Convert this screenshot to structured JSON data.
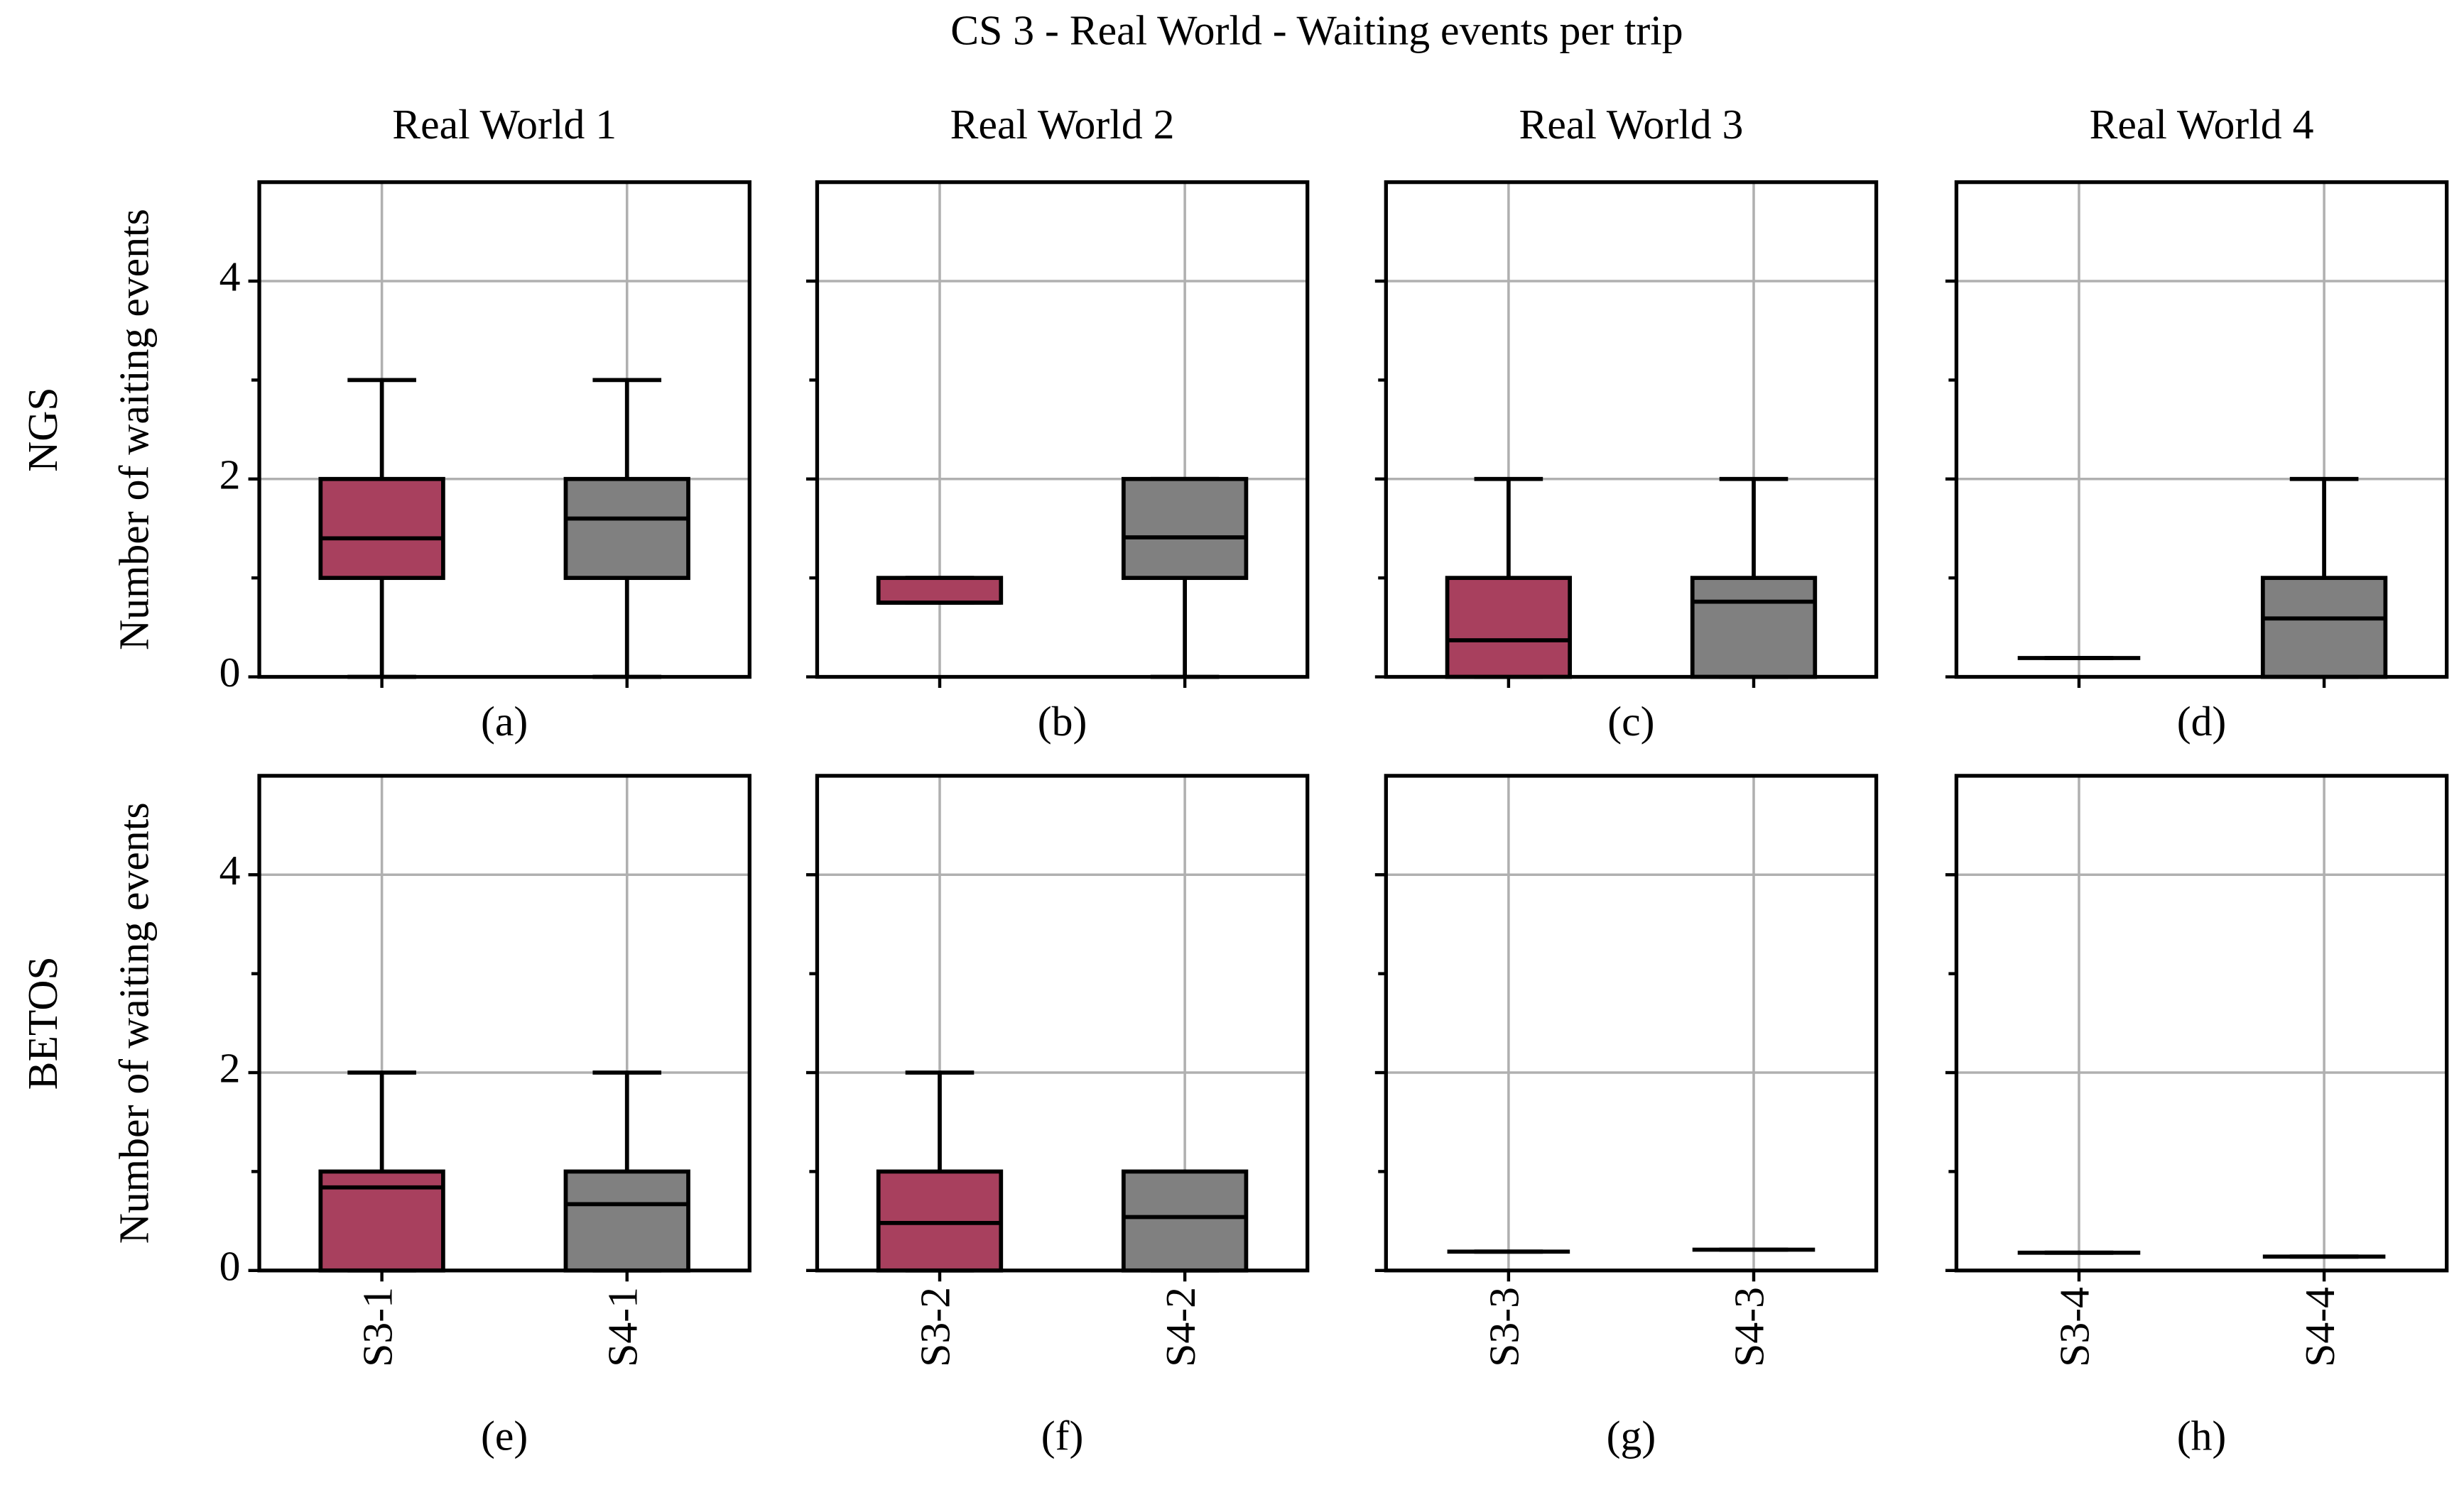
{
  "title": "CS 3 - Real World - Waiting events per trip",
  "chart_data": [
    {
      "type": "box",
      "title": "Real World 1",
      "row_label": "NGS",
      "ylabel": "Number of waiting events",
      "panel_label": "(a)",
      "categories": [
        null,
        null
      ],
      "ylim": [
        0,
        5
      ],
      "yticks": [
        0,
        2,
        4
      ],
      "yminorticks": [
        1,
        3
      ],
      "show_yticklabels": true,
      "grid": true,
      "boxes": [
        {
          "min": 0,
          "q1": 1,
          "median": 1.4,
          "q3": 2,
          "max": 3,
          "color": "#a8405e"
        },
        {
          "min": 0,
          "q1": 1,
          "median": 1.6,
          "q3": 2,
          "max": 3,
          "color": "#808080"
        }
      ]
    },
    {
      "type": "box",
      "title": "Real World 2",
      "panel_label": "(b)",
      "categories": [
        null,
        null
      ],
      "ylim": [
        0,
        5
      ],
      "yticks": [
        0,
        2,
        4
      ],
      "yminorticks": [
        1,
        3
      ],
      "show_yticklabels": false,
      "grid": true,
      "boxes": [
        {
          "min": 0.75,
          "q1": 0.75,
          "median": 0.75,
          "q3": 1,
          "max": 1,
          "color": "#a8405e"
        },
        {
          "min": 0,
          "q1": 1,
          "median": 1.41,
          "q3": 2,
          "max": 2,
          "color": "#808080"
        }
      ]
    },
    {
      "type": "box",
      "title": "Real World 3",
      "panel_label": "(c)",
      "categories": [
        null,
        null
      ],
      "ylim": [
        0,
        5
      ],
      "yticks": [
        0,
        2,
        4
      ],
      "yminorticks": [
        1,
        3
      ],
      "show_yticklabels": false,
      "grid": true,
      "boxes": [
        {
          "min": 0,
          "q1": 0,
          "median": 0.37,
          "q3": 1,
          "max": 2,
          "color": "#a8405e"
        },
        {
          "min": 0,
          "q1": 0,
          "median": 0.76,
          "q3": 1,
          "max": 2,
          "color": "#808080"
        }
      ]
    },
    {
      "type": "box",
      "title": "Real World 4",
      "panel_label": "(d)",
      "categories": [
        null,
        null
      ],
      "ylim": [
        0,
        5
      ],
      "yticks": [
        0,
        2,
        4
      ],
      "yminorticks": [
        1,
        3
      ],
      "show_yticklabels": false,
      "grid": true,
      "boxes": [
        {
          "min": 0.19,
          "q1": 0.19,
          "median": 0.19,
          "q3": 0.19,
          "max": 0.19,
          "color": "#a8405e"
        },
        {
          "min": 0,
          "q1": 0,
          "median": 0.59,
          "q3": 1,
          "max": 2,
          "color": "#808080"
        }
      ]
    },
    {
      "type": "box",
      "row_label": "BETOS",
      "ylabel": "Number of waiting events",
      "panel_label": "(e)",
      "categories": [
        "S3-1",
        "S4-1"
      ],
      "ylim": [
        0,
        5
      ],
      "yticks": [
        0,
        2,
        4
      ],
      "yminorticks": [
        1,
        3
      ],
      "show_yticklabels": true,
      "grid": true,
      "boxes": [
        {
          "min": 0,
          "q1": 0,
          "median": 0.84,
          "q3": 1,
          "max": 2,
          "color": "#a8405e"
        },
        {
          "min": 0,
          "q1": 0,
          "median": 0.67,
          "q3": 1,
          "max": 2,
          "color": "#808080"
        }
      ]
    },
    {
      "type": "box",
      "panel_label": "(f)",
      "categories": [
        "S3-2",
        "S4-2"
      ],
      "ylim": [
        0,
        5
      ],
      "yticks": [
        0,
        2,
        4
      ],
      "yminorticks": [
        1,
        3
      ],
      "show_yticklabels": false,
      "grid": true,
      "boxes": [
        {
          "min": 0,
          "q1": 0,
          "median": 0.48,
          "q3": 1,
          "max": 2,
          "color": "#a8405e"
        },
        {
          "min": 0,
          "q1": 0,
          "median": 0.54,
          "q3": 1,
          "max": 1,
          "color": "#808080"
        }
      ]
    },
    {
      "type": "box",
      "panel_label": "(g)",
      "categories": [
        "S3-3",
        "S4-3"
      ],
      "ylim": [
        0,
        5
      ],
      "yticks": [
        0,
        2,
        4
      ],
      "yminorticks": [
        1,
        3
      ],
      "show_yticklabels": false,
      "grid": true,
      "boxes": [
        {
          "min": 0.19,
          "q1": 0.19,
          "median": 0.19,
          "q3": 0.19,
          "max": 0.19,
          "color": "#a8405e"
        },
        {
          "min": 0.21,
          "q1": 0.21,
          "median": 0.21,
          "q3": 0.21,
          "max": 0.21,
          "color": "#808080"
        }
      ]
    },
    {
      "type": "box",
      "panel_label": "(h)",
      "categories": [
        "S3-4",
        "S4-4"
      ],
      "ylim": [
        0,
        5
      ],
      "yticks": [
        0,
        2,
        4
      ],
      "yminorticks": [
        1,
        3
      ],
      "show_yticklabels": false,
      "grid": true,
      "boxes": [
        {
          "min": 0.18,
          "q1": 0.18,
          "median": 0.18,
          "q3": 0.18,
          "max": 0.18,
          "color": "#a8405e"
        },
        {
          "min": 0.14,
          "q1": 0.14,
          "median": 0.14,
          "q3": 0.14,
          "max": 0.14,
          "color": "#808080"
        }
      ]
    }
  ]
}
